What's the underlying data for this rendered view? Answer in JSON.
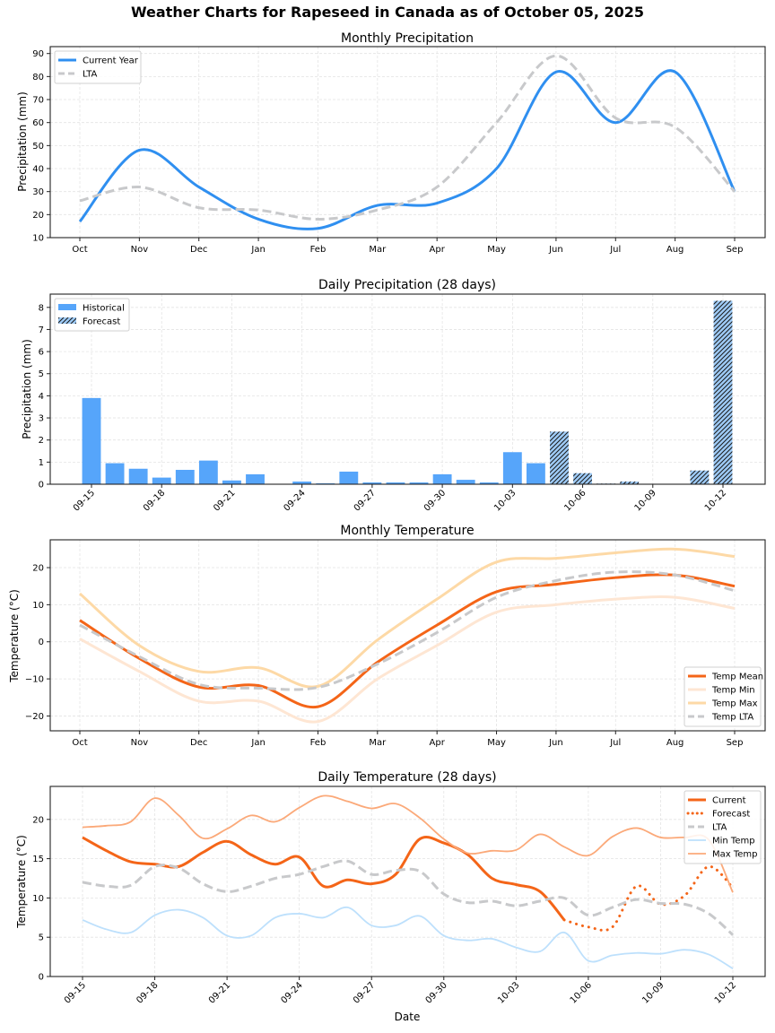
{
  "figure": {
    "title": "Weather Charts for Rapeseed in Canada as of October 05, 2025"
  },
  "chart_data": [
    {
      "id": "monthly_precip",
      "type": "line",
      "title": "Monthly Precipitation",
      "xlabel": "",
      "ylabel": "Precipitation (mm)",
      "categories": [
        "Oct",
        "Nov",
        "Dec",
        "Jan",
        "Feb",
        "Mar",
        "Apr",
        "May",
        "Jun",
        "Jul",
        "Aug",
        "Sep"
      ],
      "ylim": [
        10,
        93
      ],
      "yticks": [
        10,
        20,
        30,
        40,
        50,
        60,
        70,
        80,
        90
      ],
      "grid": true,
      "legend": "top-left",
      "series": [
        {
          "name": "Current Year",
          "color": "#2f8ff0",
          "style": "solid",
          "values": [
            17,
            48,
            32,
            18,
            14,
            24,
            25,
            40,
            82,
            60,
            82,
            30
          ]
        },
        {
          "name": "LTA",
          "color": "#c8c9cb",
          "style": "dashed",
          "values": [
            26,
            32,
            23,
            22,
            18,
            22,
            32,
            60,
            89,
            62,
            58,
            30
          ]
        }
      ]
    },
    {
      "id": "daily_precip",
      "type": "bar",
      "title": "Daily Precipitation (28 days)",
      "xlabel": "",
      "ylabel": "Precipitation (mm)",
      "categories": [
        "09-15",
        "09-16",
        "09-17",
        "09-18",
        "09-19",
        "09-20",
        "09-21",
        "09-22",
        "09-23",
        "09-24",
        "09-25",
        "09-26",
        "09-27",
        "09-28",
        "09-29",
        "09-30",
        "10-01",
        "10-02",
        "10-03",
        "10-04",
        "10-05",
        "10-06",
        "10-07",
        "10-08",
        "10-09",
        "10-10",
        "10-11",
        "10-12"
      ],
      "xticks": [
        "09-15",
        "09-18",
        "09-21",
        "09-24",
        "09-27",
        "09-30",
        "10-03",
        "10-06",
        "10-09",
        "10-12"
      ],
      "ylim": [
        0,
        8.6
      ],
      "yticks": [
        0,
        1,
        2,
        3,
        4,
        5,
        6,
        7,
        8
      ],
      "grid": true,
      "legend": "top-left",
      "forecast_start": "10-05",
      "series": [
        {
          "name": "Historical",
          "color": "#56a5fa",
          "values": [
            3.9,
            0.95,
            0.7,
            0.3,
            0.65,
            1.07,
            0.17,
            0.45,
            0,
            0.12,
            0.04,
            0.57,
            0.08,
            0.08,
            0.08,
            0.45,
            0.2,
            0.08,
            1.45,
            0.95,
            null,
            null,
            null,
            null,
            null,
            null,
            null,
            null
          ]
        },
        {
          "name": "Forecast",
          "color": "#9ecbf7",
          "hatch": "///",
          "values": [
            null,
            null,
            null,
            null,
            null,
            null,
            null,
            null,
            null,
            null,
            null,
            null,
            null,
            null,
            null,
            null,
            null,
            null,
            null,
            null,
            2.38,
            0.5,
            0.03,
            0.12,
            0,
            0,
            0.62,
            8.3
          ]
        }
      ]
    },
    {
      "id": "monthly_temp",
      "type": "line",
      "title": "Monthly Temperature",
      "xlabel": "",
      "ylabel": "Temperature (°C)",
      "categories": [
        "Oct",
        "Nov",
        "Dec",
        "Jan",
        "Feb",
        "Mar",
        "Apr",
        "May",
        "Jun",
        "Jul",
        "Aug",
        "Sep"
      ],
      "ylim": [
        -24,
        27.5
      ],
      "yticks": [
        -20,
        -10,
        0,
        10,
        20
      ],
      "grid": true,
      "legend": "bottom-right",
      "series": [
        {
          "name": "Temp Mean",
          "color": "#f46518",
          "style": "solid",
          "values": [
            5.8,
            -4.5,
            -12.2,
            -11.8,
            -17.5,
            -5.5,
            4.5,
            13.5,
            15.5,
            17.3,
            18.0,
            15.0
          ]
        },
        {
          "name": "Temp Min",
          "color": "#fee6d3",
          "style": "solid",
          "values": [
            0.8,
            -8.0,
            -16.0,
            -16.0,
            -21.5,
            -10.0,
            -1.0,
            8.0,
            10.0,
            11.5,
            12.0,
            9.0
          ]
        },
        {
          "name": "Temp Max",
          "color": "#fdd9a6",
          "style": "solid",
          "values": [
            13.0,
            -1.0,
            -8.0,
            -7.0,
            -12.0,
            0.5,
            11.5,
            21.5,
            22.5,
            24.0,
            25.0,
            23.0
          ]
        },
        {
          "name": "Temp LTA",
          "color": "#c8c9cb",
          "style": "dashed",
          "values": [
            4.5,
            -4.0,
            -11.5,
            -12.5,
            -12.3,
            -6.0,
            2.5,
            12.0,
            16.5,
            18.8,
            18.0,
            13.8
          ]
        }
      ]
    },
    {
      "id": "daily_temp",
      "type": "line",
      "title": "Daily Temperature (28 days)",
      "xlabel": "Date",
      "ylabel": "Temperature (°C)",
      "categories": [
        "09-15",
        "09-16",
        "09-17",
        "09-18",
        "09-19",
        "09-20",
        "09-21",
        "09-22",
        "09-23",
        "09-24",
        "09-25",
        "09-26",
        "09-27",
        "09-28",
        "09-29",
        "09-30",
        "10-01",
        "10-02",
        "10-03",
        "10-04",
        "10-05",
        "10-06",
        "10-07",
        "10-08",
        "10-09",
        "10-10",
        "10-11",
        "10-12"
      ],
      "xticks": [
        "09-15",
        "09-18",
        "09-21",
        "09-24",
        "09-27",
        "09-30",
        "10-03",
        "10-06",
        "10-09",
        "10-12"
      ],
      "ylim": [
        0,
        24.2
      ],
      "yticks": [
        0,
        5,
        10,
        15,
        20
      ],
      "grid": true,
      "legend": "top-right",
      "series": [
        {
          "name": "Current",
          "color": "#f46518",
          "style": "solid",
          "values": [
            17.7,
            16.0,
            14.6,
            14.3,
            14.0,
            15.8,
            17.2,
            15.5,
            14.3,
            15.2,
            11.5,
            12.3,
            11.8,
            13.0,
            17.5,
            17.0,
            15.5,
            12.5,
            11.7,
            10.8,
            7.2,
            null,
            null,
            null,
            null,
            null,
            null,
            null
          ]
        },
        {
          "name": "Forecast",
          "color": "#f46518",
          "style": "dotted",
          "values": [
            null,
            null,
            null,
            null,
            null,
            null,
            null,
            null,
            null,
            null,
            null,
            null,
            null,
            null,
            null,
            null,
            null,
            null,
            null,
            null,
            7.2,
            6.3,
            6.3,
            11.5,
            9.2,
            10.3,
            14.0,
            11.3
          ]
        },
        {
          "name": "LTA",
          "color": "#c8c9cb",
          "style": "dashed",
          "values": [
            12.0,
            11.5,
            11.6,
            14.0,
            13.8,
            11.8,
            10.8,
            11.5,
            12.5,
            13.0,
            14.0,
            14.7,
            13.0,
            13.5,
            13.4,
            10.5,
            9.4,
            9.6,
            9.0,
            9.6,
            10.0,
            7.8,
            8.8,
            9.8,
            9.3,
            9.2,
            8.0,
            5.3
          ]
        },
        {
          "name": "Min Temp",
          "color": "#bde0fc",
          "style": "solid",
          "values": [
            7.2,
            6.0,
            5.6,
            7.8,
            8.5,
            7.5,
            5.2,
            5.2,
            7.5,
            8.0,
            7.5,
            8.8,
            6.5,
            6.5,
            7.7,
            5.2,
            4.6,
            4.8,
            3.7,
            3.2,
            5.6,
            2.0,
            2.7,
            3.0,
            2.9,
            3.4,
            2.8,
            1.0
          ]
        },
        {
          "name": "Max Temp",
          "color": "#fba979",
          "style": "solid",
          "values": [
            19.0,
            19.2,
            19.7,
            22.7,
            20.5,
            17.6,
            18.8,
            20.5,
            19.7,
            21.5,
            23.0,
            22.3,
            21.4,
            22.0,
            20.2,
            17.5,
            15.7,
            16.0,
            16.1,
            18.1,
            16.5,
            15.4,
            17.8,
            18.9,
            17.7,
            17.7,
            17.4,
            10.7
          ]
        }
      ]
    }
  ]
}
